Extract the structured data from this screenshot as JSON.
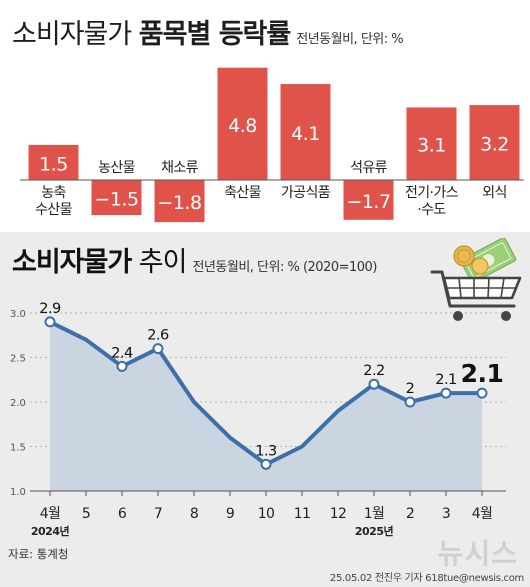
{
  "header": {
    "title_light": "소비자물가",
    "title_bold": "품목별 등락률",
    "subtitle": "전년동월비, 단위: %"
  },
  "section2": {
    "title_bold": "소비자물가",
    "title_light": "추이",
    "subtitle": "전년동월비, 단위: % (2020=100)"
  },
  "footer": {
    "source": "자료: 통계청",
    "credit": "25.05.02 전진우 기자 618tue@newsis.com",
    "logo": "뉴시스"
  },
  "colors": {
    "bar": "#e0534a",
    "line": "#3d6fa8",
    "area": "#c9d3e0"
  },
  "chart_data": [
    {
      "type": "bar",
      "title": "품목별 등락률",
      "categories": [
        "농축\n수산물",
        "농산물",
        "채소류",
        "축산물",
        "가공식품",
        "석유류",
        "전기·가스\n·수도",
        "외식"
      ],
      "values": [
        1.5,
        -1.5,
        -1.8,
        4.8,
        4.1,
        -1.7,
        3.1,
        3.2
      ],
      "data_labels": [
        "1.5",
        "−1.5",
        "−1.8",
        "4.8",
        "4.1",
        "−1.7",
        "3.1",
        "3.2"
      ]
    },
    {
      "type": "area",
      "title": "소비자물가 추이",
      "x": [
        "4월",
        "5",
        "6",
        "7",
        "8",
        "9",
        "10",
        "11",
        "12",
        "1월",
        "2",
        "3",
        "4월"
      ],
      "year_labels": {
        "0": "2024년",
        "9": "2025년"
      },
      "values": [
        2.9,
        2.7,
        2.4,
        2.6,
        2.0,
        1.6,
        1.3,
        1.5,
        1.9,
        2.2,
        2.0,
        2.1,
        2.1
      ],
      "data_labels": {
        "0": "2.9",
        "2": "2.4",
        "3": "2.6",
        "6": "1.3",
        "9": "2.2",
        "10": "2",
        "11": "2.1",
        "12": "2.1"
      },
      "highlight_index": 12,
      "yticks": [
        "1.0",
        "1.5",
        "2.0",
        "2.5",
        "3.0"
      ],
      "ylim": [
        1.0,
        3.0
      ],
      "grid": true
    }
  ]
}
